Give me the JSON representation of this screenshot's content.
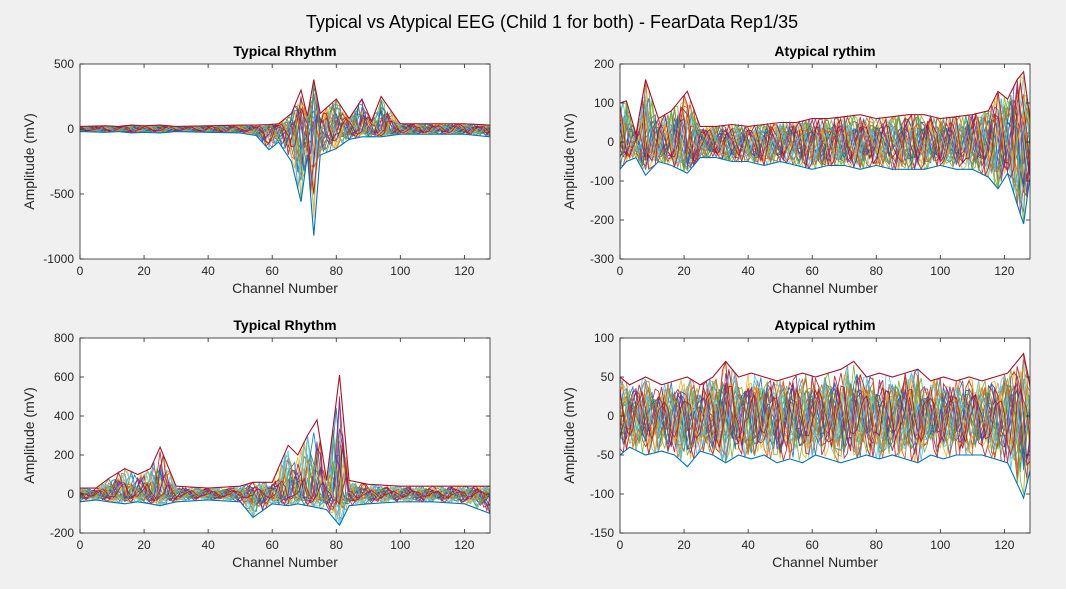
{
  "figure": {
    "title": "Typical vs Atypical EEG (Child 1 for both) - FearData Rep1/35",
    "background": "#f0f0f0"
  },
  "series_colors": [
    "#0072bd",
    "#d95319",
    "#edb120",
    "#7e2f8e",
    "#77ac30",
    "#4dbeee",
    "#a2142f"
  ],
  "chart_data": [
    {
      "type": "line",
      "title": "Typical Rhythm",
      "xlabel": "Channel Number",
      "ylabel": "Amplitude (mV)",
      "xlim": [
        0,
        128
      ],
      "ylim": [
        -1000,
        500
      ],
      "xticks": [
        0,
        20,
        40,
        60,
        80,
        100,
        120
      ],
      "yticks": [
        -1000,
        -500,
        0,
        500
      ],
      "grid": false,
      "series_count_note": "many overlaid trials",
      "x": [
        0,
        8,
        12,
        16,
        20,
        25,
        30,
        40,
        50,
        55,
        59,
        62,
        66,
        69,
        71,
        73,
        75,
        80,
        84,
        88,
        91,
        94,
        100,
        110,
        120,
        128
      ],
      "envelope_upper": [
        20,
        25,
        20,
        30,
        25,
        30,
        20,
        25,
        30,
        30,
        35,
        40,
        120,
        300,
        100,
        380,
        120,
        230,
        80,
        230,
        60,
        250,
        40,
        40,
        40,
        30
      ],
      "envelope_lower": [
        -20,
        -25,
        -20,
        -30,
        -25,
        -30,
        -20,
        -25,
        -30,
        -50,
        -160,
        -100,
        -250,
        -560,
        -200,
        -820,
        -200,
        -150,
        -80,
        -60,
        -60,
        -60,
        -40,
        -40,
        -40,
        -60
      ]
    },
    {
      "type": "line",
      "title": "Atypical rythim",
      "xlabel": "Channel Number",
      "ylabel": "Amplitude (mV)",
      "xlim": [
        0,
        128
      ],
      "ylim": [
        -300,
        200
      ],
      "xticks": [
        0,
        20,
        40,
        60,
        80,
        100,
        120
      ],
      "yticks": [
        -300,
        -200,
        -100,
        0,
        100,
        200
      ],
      "grid": false,
      "x": [
        0,
        2,
        5,
        8,
        12,
        16,
        21,
        25,
        30,
        35,
        40,
        45,
        50,
        55,
        60,
        65,
        70,
        75,
        80,
        85,
        90,
        95,
        100,
        105,
        110,
        115,
        118,
        121,
        124,
        126,
        128
      ],
      "envelope_upper": [
        100,
        105,
        20,
        160,
        60,
        80,
        130,
        40,
        40,
        45,
        40,
        45,
        50,
        50,
        60,
        60,
        65,
        70,
        60,
        65,
        70,
        70,
        60,
        65,
        70,
        80,
        130,
        110,
        160,
        180,
        60
      ],
      "envelope_lower": [
        -70,
        -50,
        -40,
        -85,
        -50,
        -60,
        -80,
        -40,
        -40,
        -50,
        -50,
        -60,
        -50,
        -60,
        -70,
        -60,
        -60,
        -70,
        -60,
        -70,
        -70,
        -70,
        -60,
        -70,
        -70,
        -90,
        -120,
        -80,
        -160,
        -210,
        -90
      ]
    },
    {
      "type": "line",
      "title": "Typical Rhythm",
      "xlabel": "Channel Number",
      "ylabel": "Amplitude (mV)",
      "xlim": [
        0,
        128
      ],
      "ylim": [
        -200,
        800
      ],
      "xticks": [
        0,
        20,
        40,
        60,
        80,
        100,
        120
      ],
      "yticks": [
        -200,
        0,
        200,
        400,
        600,
        800
      ],
      "grid": false,
      "x": [
        0,
        5,
        9,
        14,
        18,
        22,
        25,
        30,
        40,
        50,
        54,
        60,
        65,
        68,
        71,
        74,
        77,
        81,
        84,
        90,
        100,
        110,
        120,
        128
      ],
      "envelope_upper": [
        30,
        30,
        80,
        130,
        100,
        130,
        240,
        40,
        30,
        40,
        60,
        60,
        250,
        200,
        300,
        380,
        70,
        610,
        70,
        50,
        40,
        40,
        40,
        40
      ],
      "envelope_lower": [
        -40,
        -30,
        -40,
        -50,
        -40,
        -50,
        -60,
        -40,
        -30,
        -40,
        -120,
        -50,
        -60,
        -50,
        -60,
        -70,
        -80,
        -160,
        -60,
        -50,
        -40,
        -40,
        -50,
        -100
      ]
    },
    {
      "type": "line",
      "title": "Atypical rythim",
      "xlabel": "Channel Number",
      "ylabel": "Amplitude (mV)",
      "xlim": [
        0,
        128
      ],
      "ylim": [
        -150,
        100
      ],
      "xticks": [
        0,
        20,
        40,
        60,
        80,
        100,
        120
      ],
      "yticks": [
        -150,
        -100,
        -50,
        0,
        50,
        100
      ],
      "grid": false,
      "x": [
        0,
        3,
        8,
        13,
        17,
        21,
        25,
        29,
        33,
        37,
        41,
        45,
        49,
        53,
        57,
        61,
        65,
        69,
        73,
        77,
        81,
        85,
        89,
        93,
        97,
        101,
        105,
        109,
        113,
        117,
        121,
        126,
        128
      ],
      "envelope_upper": [
        50,
        40,
        50,
        40,
        45,
        50,
        40,
        50,
        70,
        50,
        55,
        50,
        45,
        50,
        55,
        50,
        55,
        60,
        70,
        50,
        55,
        50,
        55,
        60,
        45,
        50,
        45,
        50,
        45,
        50,
        55,
        80,
        40
      ],
      "envelope_lower": [
        -50,
        -40,
        -50,
        -45,
        -50,
        -65,
        -45,
        -50,
        -60,
        -50,
        -55,
        -50,
        -60,
        -55,
        -60,
        -50,
        -55,
        -60,
        -55,
        -50,
        -55,
        -50,
        -55,
        -60,
        -50,
        -55,
        -50,
        -50,
        -50,
        -55,
        -60,
        -105,
        -70
      ]
    }
  ]
}
